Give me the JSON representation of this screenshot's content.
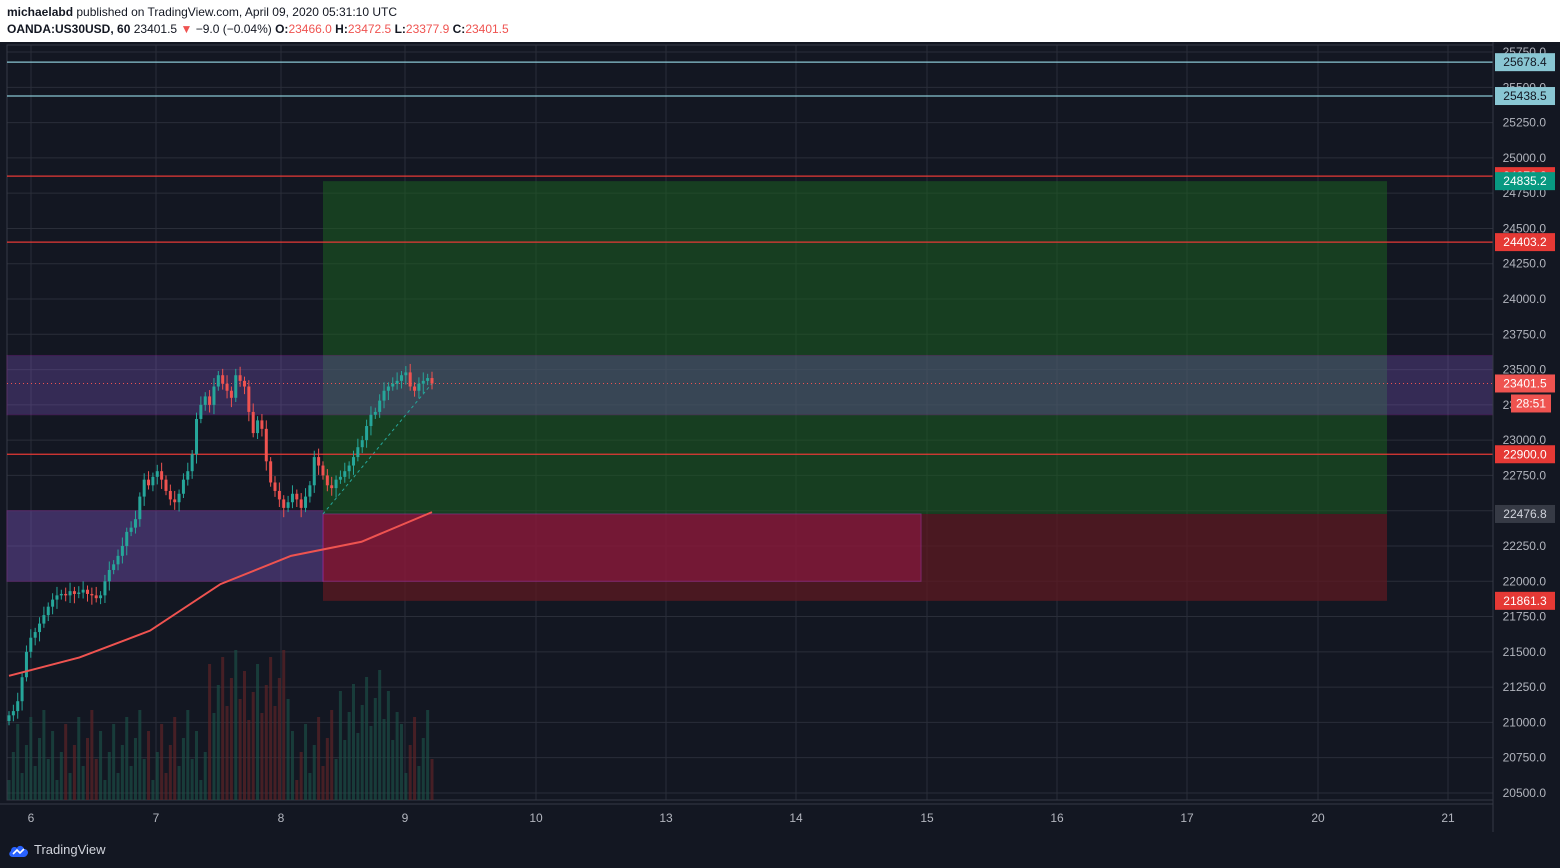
{
  "header": {
    "author": "michaelabd",
    "published_text": "published on TradingView.com, April 09, 2020 05:31:10 UTC",
    "symbol": "OANDA:US30USD, 60",
    "last": "23401.5",
    "change_arrow": "▼",
    "change": "−9.0 (−0.04%)",
    "o_label": "O:",
    "o_value": "23466.0",
    "h_label": "H:",
    "h_value": "23472.5",
    "l_label": "L:",
    "l_value": "23377.9",
    "c_label": "C:",
    "c_value": "23401.5"
  },
  "footer": {
    "brand": "TradingView"
  },
  "colors": {
    "background": "#131722",
    "grid": "#2a2e39",
    "up": "#26a69a",
    "down": "#ef5350",
    "ma": "#ef5350",
    "level_red": "#e53935",
    "level_cyan": "#89c6d3",
    "profit_zone": "#1b5e20",
    "loss_zone": "#5d1a22",
    "purple_zone": "#5a2d82"
  },
  "icons": {
    "logo": "tradingview-cloud-icon",
    "change_direction": "down-triangle-icon"
  },
  "chart_data": {
    "type": "candlestick",
    "symbol": "OANDA:US30USD",
    "interval": "60",
    "y_range": [
      20450,
      25800
    ],
    "y_ticks": [
      "20500.0",
      "20750.0",
      "21000.0",
      "21250.0",
      "21500.0",
      "21750.0",
      "22000.0",
      "22250.0",
      "22500.0",
      "22750.0",
      "23000.0",
      "23250.0",
      "23500.0",
      "23750.0",
      "24000.0",
      "24250.0",
      "24500.0",
      "24750.0",
      "25000.0",
      "25250.0",
      "25500.0",
      "25750.0"
    ],
    "x_ticks": [
      {
        "label": "6",
        "t": 0
      },
      {
        "label": "7",
        "t": 1
      },
      {
        "label": "8",
        "t": 2
      },
      {
        "label": "9",
        "t": 3
      },
      {
        "label": "10",
        "t": 4
      },
      {
        "label": "13",
        "t": 5
      },
      {
        "label": "14",
        "t": 6
      },
      {
        "label": "15",
        "t": 7
      },
      {
        "label": "16",
        "t": 8
      },
      {
        "label": "17",
        "t": 9
      },
      {
        "label": "20",
        "t": 10
      },
      {
        "label": "21",
        "t": 11
      }
    ],
    "candles_close": [
      21050,
      21080,
      21150,
      21320,
      21500,
      21600,
      21640,
      21700,
      21760,
      21820,
      21870,
      21900,
      21910,
      21900,
      21930,
      21910,
      21920,
      21940,
      21910,
      21900,
      21880,
      21900,
      22000,
      22080,
      22120,
      22180,
      22250,
      22350,
      22380,
      22440,
      22600,
      22720,
      22680,
      22740,
      22780,
      22720,
      22640,
      22580,
      22560,
      22620,
      22720,
      22780,
      22900,
      23150,
      23250,
      23310,
      23250,
      23380,
      23460,
      23400,
      23350,
      23300,
      23460,
      23420,
      23380,
      23200,
      23050,
      23140,
      23080,
      22850,
      22700,
      22640,
      22580,
      22520,
      22560,
      22620,
      22580,
      22520,
      22600,
      22680,
      22880,
      22820,
      22750,
      22680,
      22660,
      22720,
      22740,
      22780,
      22820,
      22880,
      22950,
      23000,
      23100,
      23180,
      23200,
      23280,
      23350,
      23380,
      23400,
      23420,
      23460,
      23480,
      23380,
      23350,
      23400,
      23420,
      23440,
      23401.5
    ],
    "moving_average": [
      [
        0,
        21330
      ],
      [
        20,
        21460
      ],
      [
        40,
        21650
      ],
      [
        60,
        21980
      ],
      [
        80,
        22180
      ],
      [
        100,
        22280
      ],
      [
        120,
        22490
      ]
    ],
    "horizontal_levels": [
      {
        "value": 25678.4,
        "label": "25678.4",
        "color": "#89c6d3",
        "text_color": "#131722"
      },
      {
        "value": 25438.5,
        "label": "25438.5",
        "color": "#89c6d3",
        "text_color": "#131722"
      },
      {
        "value": 24870.8,
        "label": "24870.8",
        "color": "#e53935",
        "text_color": "#ffffff"
      },
      {
        "value": 24403.2,
        "label": "24403.2",
        "color": "#e53935",
        "text_color": "#ffffff"
      },
      {
        "value": 22900.0,
        "label": "22900.0",
        "color": "#e53935",
        "text_color": "#ffffff"
      }
    ],
    "price_labels": [
      {
        "value": 24835.2,
        "label": "24835.2",
        "bg": "#089981",
        "text_color": "#ffffff"
      },
      {
        "value": 23401.5,
        "label": "23401.5",
        "bg": "#ef5350",
        "text_color": "#ffffff"
      },
      {
        "value": 22476.8,
        "label": "22476.8",
        "bg": "#363a45",
        "text_color": "#d1d4dc"
      },
      {
        "value": 21861.3,
        "label": "21861.3",
        "bg": "#e53935",
        "text_color": "#ffffff"
      }
    ],
    "countdown": "28:51",
    "long_position": {
      "entry": 22476.8,
      "target": 24835.2,
      "stop": 21861.3
    },
    "zones": [
      {
        "name": "purple-resistance-zone",
        "from": 23180,
        "to": 23600
      },
      {
        "name": "purple-support-zone",
        "from": 22000,
        "to": 22500
      },
      {
        "name": "pink-demand-zone",
        "from": 22000,
        "to": 22476.8
      }
    ]
  }
}
